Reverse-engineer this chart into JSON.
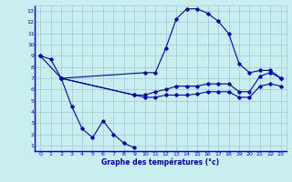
{
  "xlabel": "Graphe des températures (°c)",
  "xlim": [
    -0.5,
    23.5
  ],
  "ylim": [
    0.5,
    13.5
  ],
  "xticks": [
    0,
    1,
    2,
    3,
    4,
    5,
    6,
    7,
    8,
    9,
    10,
    11,
    12,
    13,
    14,
    15,
    16,
    17,
    18,
    19,
    20,
    21,
    22,
    23
  ],
  "yticks": [
    1,
    2,
    3,
    4,
    5,
    6,
    7,
    8,
    9,
    10,
    11,
    12,
    13
  ],
  "bg_color": "#c8eef0",
  "line_color": "#0000bb",
  "grid_color": "#a0d0dc",
  "lines": [
    {
      "x": [
        0,
        1,
        2,
        10,
        11,
        12,
        13,
        14,
        15,
        16,
        17,
        18,
        19,
        20,
        21,
        22,
        23
      ],
      "y": [
        9,
        8.7,
        7,
        7.5,
        7.5,
        9.7,
        12.3,
        13.2,
        13.2,
        12.8,
        12.1,
        11.0,
        8.3,
        7.5,
        7.7,
        7.7,
        7.0
      ]
    },
    {
      "x": [
        2,
        3,
        4,
        5,
        6,
        7,
        8,
        9
      ],
      "y": [
        7.0,
        4.5,
        2.5,
        1.7,
        3.2,
        2.0,
        1.2,
        0.8
      ]
    },
    {
      "x": [
        0,
        2,
        9,
        10,
        11,
        12,
        13,
        14,
        15,
        16,
        17,
        18,
        19,
        20,
        21,
        22,
        23
      ],
      "y": [
        9,
        7.0,
        5.5,
        5.5,
        5.8,
        6.0,
        6.3,
        6.3,
        6.3,
        6.5,
        6.5,
        6.5,
        5.8,
        5.8,
        7.2,
        7.5,
        7.0
      ]
    },
    {
      "x": [
        2,
        9,
        10,
        11,
        12,
        13,
        14,
        15,
        16,
        17,
        18,
        19,
        20,
        21,
        22,
        23
      ],
      "y": [
        7.0,
        5.5,
        5.3,
        5.3,
        5.5,
        5.5,
        5.5,
        5.6,
        5.8,
        5.8,
        5.8,
        5.3,
        5.3,
        6.3,
        6.5,
        6.3
      ]
    }
  ]
}
